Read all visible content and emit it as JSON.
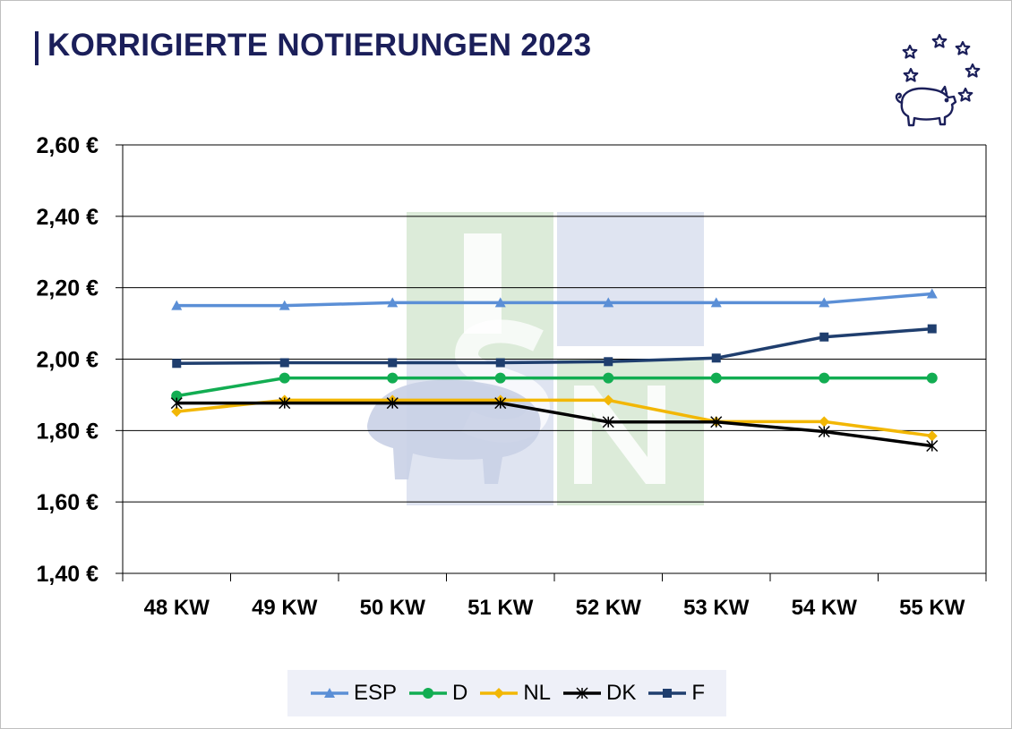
{
  "title": "KORRIGIERTE NOTIERUNGEN 2023",
  "chart_data": {
    "type": "line",
    "categories": [
      "48 KW",
      "49 KW",
      "50 KW",
      "51 KW",
      "52 KW",
      "53 KW",
      "54 KW",
      "55 KW"
    ],
    "ylim": [
      1.4,
      2.6
    ],
    "yticks": [
      "2,60 €",
      "2,40 €",
      "2,20 €",
      "2,00 €",
      "1,80 €",
      "1,60 €",
      "1,40 €"
    ],
    "ytick_values": [
      2.6,
      2.4,
      2.2,
      2.0,
      1.8,
      1.6,
      1.4
    ],
    "grid": true,
    "legend_position": "bottom",
    "series": [
      {
        "name": "ESP",
        "color": "#5b8fd6",
        "marker": "triangle",
        "values": [
          2.15,
          2.15,
          2.158,
          2.158,
          2.158,
          2.158,
          2.158,
          2.183
        ]
      },
      {
        "name": "D",
        "color": "#12ad52",
        "marker": "circle",
        "values": [
          1.897,
          1.947,
          1.947,
          1.947,
          1.947,
          1.947,
          1.947,
          1.947
        ]
      },
      {
        "name": "NL",
        "color": "#f2b705",
        "marker": "diamond",
        "values": [
          1.853,
          1.885,
          1.885,
          1.885,
          1.885,
          1.825,
          1.825,
          1.785
        ]
      },
      {
        "name": "DK",
        "color": "#000000",
        "marker": "asterisk",
        "values": [
          1.877,
          1.877,
          1.877,
          1.877,
          1.824,
          1.824,
          1.797,
          1.757
        ]
      },
      {
        "name": "F",
        "color": "#1f3e6e",
        "marker": "square",
        "values": [
          1.988,
          1.99,
          1.99,
          1.99,
          1.993,
          2.003,
          2.062,
          2.085
        ]
      }
    ]
  },
  "watermark": {
    "letters": [
      "I",
      "S",
      "N"
    ],
    "colors": [
      "#dcebd9",
      "#dfe4f1"
    ]
  },
  "logo": {
    "icon": "pig-with-stars-icon",
    "color": "#1b1f5a"
  }
}
